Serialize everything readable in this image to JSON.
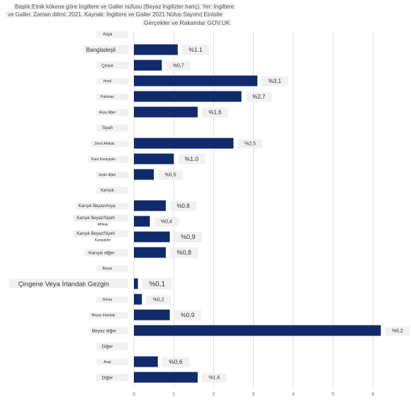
{
  "header": {
    "line1": "Başlık:Etnik kökene göre İngiltere ve Galler nüfusu (Beyaz İngilizler hariç). Yer: İngiltere",
    "line2": "ve Galler. Zaman dilimi: 2021. Kaynak: İngiltere ve Galler 2021 Nüfus Sayımı| Etnisite",
    "line3": "Gerçekler ve Rakamlar GOV.UK"
  },
  "colors": {
    "bar": "#102a6b",
    "label_bg": "#f1f1f1",
    "grid": "#d4d4d4"
  },
  "chart_data": {
    "type": "bar",
    "orientation": "horizontal",
    "xlim": [
      0,
      7
    ],
    "xticks": [
      0,
      1,
      2,
      3,
      4,
      5,
      6,
      7
    ],
    "grid": true,
    "categories": [
      "Asya",
      "Bangladeşli",
      "Çince",
      "Hindi",
      "Pakistan",
      "Asya diğer",
      "Siyah",
      "Zenci Afrikalı",
      "Kara Karayipler",
      "siyah diğer",
      "Karışık",
      "Karışık Beyaz/Asya",
      "Karışık Beyaz/Siyah",
      "Karışık Beyaz/Siyah",
      "Karışık diğer",
      "Beyaz",
      "Çingene Veya İrlandalı Gezgin",
      "Roma",
      "Beyaz İrlandalı",
      "Beyaz diğer",
      "Diğer",
      "Arap",
      "Diğer"
    ],
    "sublabels": [
      "",
      "",
      "",
      "",
      "",
      "",
      "",
      "",
      "",
      "",
      "",
      "",
      "Afrikalı",
      "Karayipler",
      "",
      "",
      "",
      "",
      "",
      "",
      "",
      "",
      ""
    ],
    "values": [
      null,
      1.1,
      0.7,
      3.1,
      2.7,
      1.6,
      null,
      2.5,
      1.0,
      0.5,
      null,
      0.8,
      0.4,
      0.9,
      0.8,
      null,
      0.1,
      0.2,
      0.9,
      6.2,
      null,
      0.6,
      1.6
    ],
    "value_labels": [
      "",
      "%1.1",
      "%0,7",
      "%3,1",
      "%2,7",
      "%1,6",
      "",
      "%2,5",
      "%1.0",
      "%0,5",
      "",
      "%0,8",
      "%0,4",
      "%0,9",
      "%0,8",
      "",
      "%0,1",
      "%0,2",
      "%0,9",
      "%6,2",
      "",
      "%0,6",
      "%1,6"
    ],
    "label_sizes": [
      6,
      8,
      6.5,
      5,
      5,
      5,
      6,
      5,
      5,
      5,
      6,
      6,
      6,
      6,
      6.5,
      5,
      9.5,
      5,
      5,
      6.5,
      6.5,
      5,
      6.5
    ],
    "value_sizes": [
      8,
      8.5,
      7,
      8,
      8,
      8,
      8,
      7,
      8.5,
      7,
      8,
      8,
      7,
      9,
      9,
      8,
      10,
      7,
      8.5,
      7,
      8,
      8.5,
      7
    ]
  }
}
